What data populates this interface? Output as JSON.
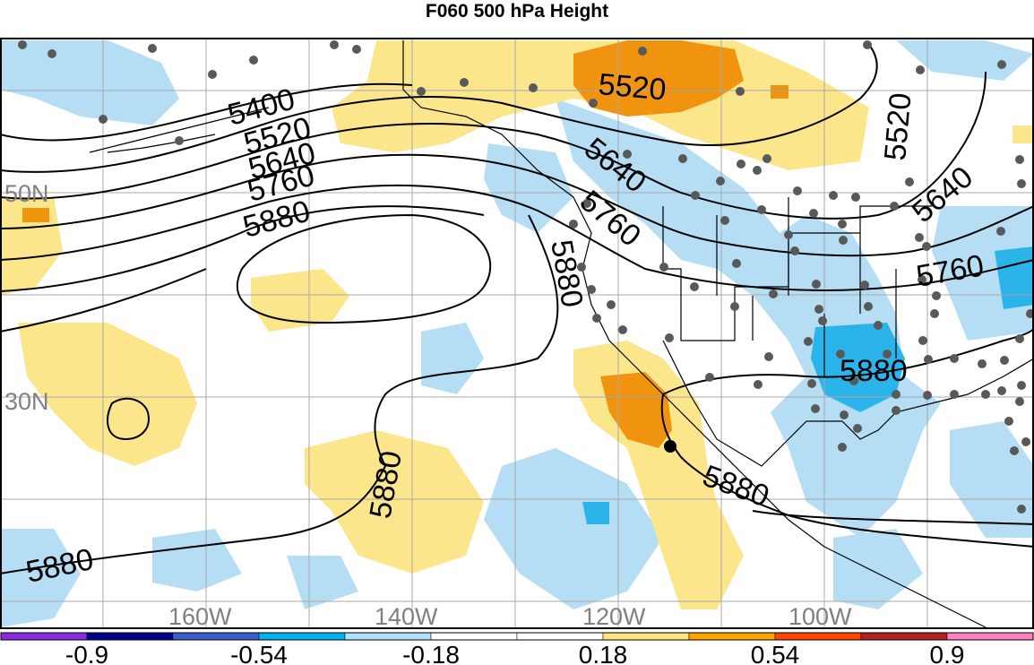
{
  "title": "F060 500 hPa Height",
  "lat_labels": [
    "50N",
    "30N"
  ],
  "lon_labels": [
    "160W",
    "140W",
    "120W",
    "100W"
  ],
  "contour_labels": [
    "5400",
    "5520",
    "5640",
    "5760",
    "5880"
  ],
  "colorbar": {
    "colors": [
      "#8a2be2",
      "#00008b",
      "#3a5fcd",
      "#00b2ee",
      "#b0e2ff",
      "#ffffff",
      "#ffffff",
      "#ffe680",
      "#ffa500",
      "#ff4500",
      "#b22222",
      "#ff82c0"
    ],
    "tick_labels": [
      "-0.9",
      "-0.54",
      "-0.18",
      "0.18",
      "0.54",
      "0.9"
    ]
  }
}
